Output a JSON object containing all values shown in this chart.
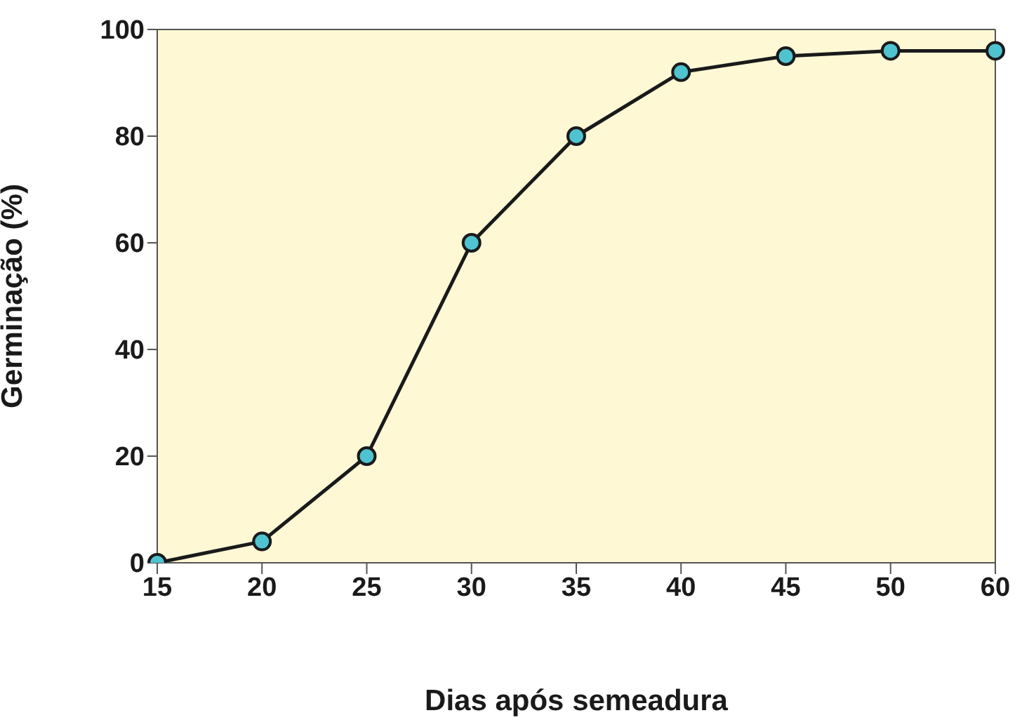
{
  "chart_data": {
    "type": "line",
    "xlabel": "Dias após semeadura",
    "ylabel": "Germinação (%)",
    "categories": [
      "15",
      "20",
      "25",
      "30",
      "35",
      "40",
      "45",
      "50",
      "60"
    ],
    "series": [
      {
        "color": "#4fc3d0",
        "values": [
          0,
          4,
          20,
          60,
          80,
          92,
          95,
          96,
          96
        ]
      }
    ],
    "ylim": [
      0,
      100
    ],
    "yticks": [
      0,
      20,
      40,
      60,
      80,
      100
    ],
    "grid": false,
    "marker": "circle",
    "line_style": "solid"
  }
}
